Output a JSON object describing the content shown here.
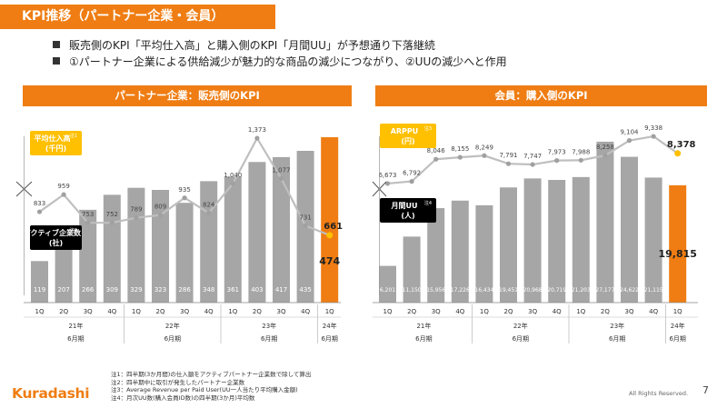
{
  "slide": {
    "title": "KPI推移（パートナー企業・会員）",
    "bullets": [
      "販売側のKPI「平均仕入高」と購入側のKPI「月間UU」が予想通り下落継続",
      "①パートナー企業による供給減少が魅力的な商品の減少につながり、②UUの減少へと作用"
    ],
    "page_number": "7",
    "logo": "Kuradashi",
    "copyright": "All Rights Reserved."
  },
  "footnotes": [
    "注1：四半期(3か月間)の仕入額をアクティブパートナー企業数で除して算出",
    "注2：四半期中に取引が発生したパートナー企業数",
    "注3：Average Revenue per Paid User(UU一人当たり平均購入金額)",
    "注4：月次UU数(購入会員ID数)の四半期(3か月)平均数"
  ],
  "colors": {
    "accent": "#ef7d13",
    "bar": "#a6a6a6",
    "line": "#bfbfbf",
    "label_box": "#ffc000"
  },
  "chart_data": [
    {
      "type": "bar+line",
      "title": "パートナー企業：販売側のKPI",
      "categories": [
        "1Q",
        "2Q",
        "3Q",
        "4Q",
        "1Q",
        "2Q",
        "3Q",
        "4Q",
        "1Q",
        "2Q",
        "3Q",
        "4Q",
        "1Q"
      ],
      "groups": [
        {
          "year": "21年",
          "period": "6月期",
          "start": 0,
          "end": 3
        },
        {
          "year": "22年",
          "period": "6月期",
          "start": 4,
          "end": 7
        },
        {
          "year": "23年",
          "period": "6月期",
          "start": 8,
          "end": 11
        },
        {
          "year": "24年",
          "period": "6月期",
          "start": 12,
          "end": 12
        }
      ],
      "bar_series": {
        "name": "アクティブ企業数(社)",
        "note": "注2",
        "values": [
          119,
          207,
          266,
          309,
          329,
          323,
          286,
          348,
          361,
          403,
          417,
          435,
          474
        ]
      },
      "line_series": {
        "name": "平均仕入高(千円)",
        "note": "注1",
        "values": [
          833,
          959,
          753,
          752,
          789,
          809,
          935,
          824,
          1040,
          1373,
          1077,
          731,
          661
        ]
      },
      "bar_labels": [
        "119",
        "207",
        "266",
        "309",
        "329",
        "323",
        "286",
        "348",
        "361",
        "403",
        "417",
        "435",
        "474"
      ],
      "line_labels": [
        "833",
        "959",
        "753",
        "752",
        "789",
        "809",
        "935",
        "824",
        "1,040",
        "1,373",
        "1,077",
        "731",
        "661"
      ],
      "bar_max": 560,
      "line_range": [
        600,
        1400
      ]
    },
    {
      "type": "bar+line",
      "title": "会員：購入側のKPI",
      "categories": [
        "1Q",
        "2Q",
        "3Q",
        "4Q",
        "1Q",
        "2Q",
        "3Q",
        "4Q",
        "1Q",
        "2Q",
        "3Q",
        "4Q",
        "1Q"
      ],
      "groups": [
        {
          "year": "21年",
          "period": "6月期",
          "start": 0,
          "end": 3
        },
        {
          "year": "22年",
          "period": "6月期",
          "start": 4,
          "end": 7
        },
        {
          "year": "23年",
          "period": "6月期",
          "start": 8,
          "end": 11
        },
        {
          "year": "24年",
          "period": "6月期",
          "start": 12,
          "end": 12
        }
      ],
      "bar_series": {
        "name": "月間UU(人)",
        "note": "注4",
        "values": [
          6201,
          11150,
          15956,
          17226,
          16434,
          19451,
          20968,
          20719,
          21203,
          27177,
          24622,
          21115,
          19815
        ]
      },
      "line_series": {
        "name": "ARPPU(円)",
        "note": "注3",
        "values": [
          6673,
          6792,
          8046,
          8155,
          8249,
          7791,
          7747,
          7973,
          7988,
          8258,
          9104,
          9338,
          8378
        ]
      },
      "bar_labels": [
        "6,201",
        "11,150",
        "15,956",
        "17,226",
        "16,434",
        "19,451",
        "20,968",
        "20,719",
        "21,203",
        "27,177",
        "24,622",
        "21,115",
        "19,815"
      ],
      "line_labels": [
        "6,673",
        "6,792",
        "8,046",
        "8,155",
        "8,249",
        "7,791",
        "7,747",
        "7,973",
        "7,988",
        "8,258",
        "9,104",
        "9,338",
        "8,378"
      ],
      "bar_max": 33000,
      "line_range": [
        6000,
        9600
      ]
    }
  ]
}
